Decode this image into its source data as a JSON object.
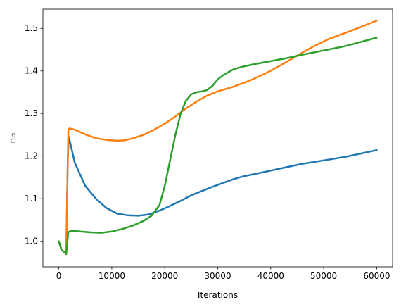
{
  "chart_data": {
    "type": "line",
    "title": "",
    "xlabel": "Iterations",
    "ylabel": "na",
    "xlim": [
      -3000,
      63000
    ],
    "ylim": [
      0.94,
      1.545
    ],
    "grid": false,
    "x_ticks": [
      0,
      10000,
      20000,
      30000,
      40000,
      50000,
      60000
    ],
    "x_tick_labels": [
      "0",
      "10000",
      "20000",
      "30000",
      "40000",
      "50000",
      "60000"
    ],
    "y_ticks": [
      1.0,
      1.1,
      1.2,
      1.3,
      1.4,
      1.5
    ],
    "y_tick_labels": [
      "1.0",
      "1.1",
      "1.2",
      "1.3",
      "1.4",
      "1.5"
    ],
    "series": [
      {
        "color": "#1f77b4",
        "points": [
          [
            0,
            1.0
          ],
          [
            500,
            0.98
          ],
          [
            1000,
            0.975
          ],
          [
            1400,
            0.97
          ],
          [
            1700,
            1.2
          ],
          [
            1900,
            1.245
          ],
          [
            3000,
            1.185
          ],
          [
            5000,
            1.13
          ],
          [
            7000,
            1.1
          ],
          [
            9000,
            1.078
          ],
          [
            11000,
            1.065
          ],
          [
            13000,
            1.061
          ],
          [
            15000,
            1.06
          ],
          [
            17000,
            1.063
          ],
          [
            19000,
            1.072
          ],
          [
            21000,
            1.083
          ],
          [
            23000,
            1.095
          ],
          [
            25000,
            1.108
          ],
          [
            27000,
            1.118
          ],
          [
            29000,
            1.128
          ],
          [
            31000,
            1.137
          ],
          [
            33000,
            1.146
          ],
          [
            35000,
            1.153
          ],
          [
            37000,
            1.158
          ],
          [
            40000,
            1.166
          ],
          [
            43000,
            1.174
          ],
          [
            46000,
            1.182
          ],
          [
            50000,
            1.19
          ],
          [
            54000,
            1.198
          ],
          [
            57000,
            1.206
          ],
          [
            60000,
            1.214
          ]
        ]
      },
      {
        "color": "#ff7f0e",
        "points": [
          [
            0,
            1.0
          ],
          [
            500,
            0.98
          ],
          [
            1000,
            0.975
          ],
          [
            1400,
            0.97
          ],
          [
            1800,
            1.262
          ],
          [
            2000,
            1.265
          ],
          [
            3000,
            1.262
          ],
          [
            5000,
            1.251
          ],
          [
            7000,
            1.242
          ],
          [
            9000,
            1.238
          ],
          [
            11000,
            1.236
          ],
          [
            12500,
            1.237
          ],
          [
            14000,
            1.242
          ],
          [
            16000,
            1.25
          ],
          [
            18000,
            1.262
          ],
          [
            20000,
            1.276
          ],
          [
            22000,
            1.293
          ],
          [
            24000,
            1.312
          ],
          [
            26000,
            1.328
          ],
          [
            28000,
            1.342
          ],
          [
            30000,
            1.352
          ],
          [
            33000,
            1.363
          ],
          [
            36000,
            1.377
          ],
          [
            39000,
            1.394
          ],
          [
            42000,
            1.414
          ],
          [
            45000,
            1.436
          ],
          [
            48000,
            1.457
          ],
          [
            51000,
            1.475
          ],
          [
            54000,
            1.489
          ],
          [
            57000,
            1.503
          ],
          [
            60000,
            1.518
          ]
        ]
      },
      {
        "color": "#2ca02c",
        "points": [
          [
            0,
            1.0
          ],
          [
            500,
            0.98
          ],
          [
            1000,
            0.975
          ],
          [
            1400,
            0.97
          ],
          [
            1800,
            1.022
          ],
          [
            2500,
            1.025
          ],
          [
            4000,
            1.023
          ],
          [
            6000,
            1.021
          ],
          [
            8000,
            1.02
          ],
          [
            10000,
            1.023
          ],
          [
            12000,
            1.029
          ],
          [
            14000,
            1.037
          ],
          [
            16000,
            1.048
          ],
          [
            17500,
            1.06
          ],
          [
            19000,
            1.085
          ],
          [
            20000,
            1.13
          ],
          [
            21000,
            1.19
          ],
          [
            22000,
            1.25
          ],
          [
            23000,
            1.3
          ],
          [
            24000,
            1.33
          ],
          [
            25000,
            1.345
          ],
          [
            26000,
            1.35
          ],
          [
            27000,
            1.352
          ],
          [
            28000,
            1.355
          ],
          [
            29000,
            1.365
          ],
          [
            30000,
            1.38
          ],
          [
            31000,
            1.39
          ],
          [
            32000,
            1.397
          ],
          [
            33000,
            1.404
          ],
          [
            35000,
            1.411
          ],
          [
            37000,
            1.416
          ],
          [
            40000,
            1.423
          ],
          [
            43000,
            1.43
          ],
          [
            46000,
            1.438
          ],
          [
            50000,
            1.448
          ],
          [
            54000,
            1.458
          ],
          [
            57000,
            1.468
          ],
          [
            60000,
            1.478
          ]
        ]
      }
    ]
  }
}
